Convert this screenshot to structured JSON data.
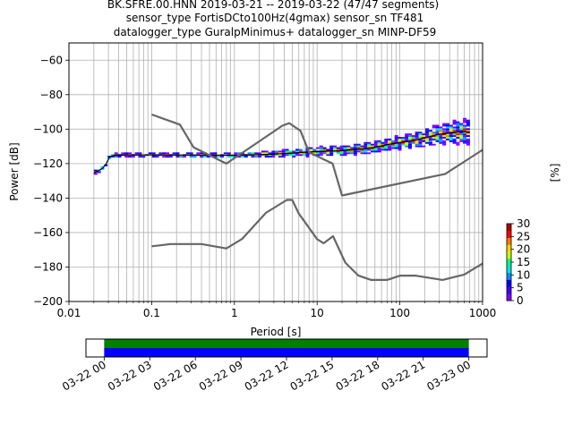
{
  "title": {
    "line1": "BK.SFRE.00.HNN   2019-03-21 -- 2019-03-22  (47/47 segments)",
    "line2": "sensor_type FortisDCto100Hz(4gmax) sensor_sn TF481",
    "line3": "datalogger_type GuralpMinimus+ datalogger_sn MINP-DF59"
  },
  "chart_data": [
    {
      "type": "heatmap",
      "xlabel": "Period [s]",
      "ylabel": "Power [dB]",
      "xscale": "log",
      "xlim": [
        0.01,
        1000
      ],
      "ylim": [
        -200,
        -50
      ],
      "xticks": [
        {
          "v": 0.01,
          "label": "0.01"
        },
        {
          "v": 0.1,
          "label": "0.1"
        },
        {
          "v": 1,
          "label": "1"
        },
        {
          "v": 10,
          "label": "10"
        },
        {
          "v": 100,
          "label": "100"
        },
        {
          "v": 1000,
          "label": "1000"
        }
      ],
      "yticks": [
        {
          "v": -60,
          "label": "−60"
        },
        {
          "v": -80,
          "label": "−80"
        },
        {
          "v": -100,
          "label": "−100"
        },
        {
          "v": -120,
          "label": "−120"
        },
        {
          "v": -140,
          "label": "−140"
        },
        {
          "v": -160,
          "label": "−160"
        },
        {
          "v": -180,
          "label": "−180"
        },
        {
          "v": -200,
          "label": "−200"
        }
      ],
      "grid": true,
      "noise_models": {
        "new_high_noise_model": [
          [
            0.1,
            -91.5
          ],
          [
            0.22,
            -97.4
          ],
          [
            0.32,
            -110.5
          ],
          [
            0.8,
            -120
          ],
          [
            3.8,
            -98
          ],
          [
            4.6,
            -96.5
          ],
          [
            6.3,
            -101
          ],
          [
            8,
            -113.5
          ],
          [
            15.4,
            -120
          ],
          [
            20,
            -138.5
          ],
          [
            354,
            -126
          ],
          [
            1000,
            -112
          ]
        ],
        "new_low_noise_model": [
          [
            0.1,
            -168
          ],
          [
            0.17,
            -166.7
          ],
          [
            0.4,
            -166.7
          ],
          [
            0.8,
            -169.2
          ],
          [
            1.24,
            -163.7
          ],
          [
            2.4,
            -148.6
          ],
          [
            4.3,
            -141.1
          ],
          [
            5,
            -141.1
          ],
          [
            6,
            -149
          ],
          [
            10,
            -163.8
          ],
          [
            12,
            -166.2
          ],
          [
            15.6,
            -162.1
          ],
          [
            21.9,
            -177.5
          ],
          [
            31.6,
            -185
          ],
          [
            45,
            -187.5
          ],
          [
            70,
            -187.5
          ],
          [
            101,
            -185
          ],
          [
            154,
            -185
          ],
          [
            328,
            -187.5
          ],
          [
            600,
            -184.4
          ],
          [
            1000,
            -178
          ]
        ]
      },
      "psd_median": [
        [
          0.02,
          -125.5
        ],
        [
          0.025,
          -123
        ],
        [
          0.028,
          -120.5
        ],
        [
          0.031,
          -116
        ],
        [
          0.035,
          -115.2
        ],
        [
          0.05,
          -115
        ],
        [
          0.1,
          -115
        ],
        [
          1,
          -115.2
        ],
        [
          3,
          -114.5
        ],
        [
          10,
          -113
        ],
        [
          20,
          -112.5
        ],
        [
          30,
          -111.8
        ],
        [
          50,
          -110.5
        ],
        [
          80,
          -108.5
        ],
        [
          150,
          -106.5
        ],
        [
          300,
          -103
        ],
        [
          500,
          -101.8
        ],
        [
          700,
          -101.5
        ]
      ],
      "psd_spread_db": [
        [
          0.02,
          1
        ],
        [
          0.1,
          1
        ],
        [
          1,
          1.2
        ],
        [
          3,
          1.6
        ],
        [
          10,
          2.2
        ],
        [
          30,
          2.6
        ],
        [
          100,
          3.2
        ],
        [
          300,
          4.5
        ],
        [
          700,
          6
        ]
      ],
      "colorbar": {
        "label": "[%]",
        "range": [
          0,
          30
        ],
        "ticks": [
          {
            "v": 0,
            "label": "0"
          },
          {
            "v": 5,
            "label": "5"
          },
          {
            "v": 10,
            "label": "10"
          },
          {
            "v": 15,
            "label": "15"
          },
          {
            "v": 20,
            "label": "20"
          },
          {
            "v": 25,
            "label": "25"
          },
          {
            "v": 30,
            "label": "30"
          }
        ],
        "colormap": [
          "#ffffff",
          "#8000ff",
          "#3d00ff",
          "#0000ff",
          "#0090ff",
          "#00e5e5",
          "#00ff80",
          "#c5ff00",
          "#ffd500",
          "#ff7a00",
          "#ff0000",
          "#b00000"
        ]
      }
    },
    {
      "type": "bar",
      "title": "",
      "xlabel": "",
      "ylabel": "",
      "xticks": [
        "03-22 00",
        "03-22 03",
        "03-22 06",
        "03-22 09",
        "03-22 12",
        "03-22 15",
        "03-22 18",
        "03-22 21",
        "03-23 00"
      ],
      "xlim_hours": [
        -1.2,
        25.2
      ],
      "series": [
        {
          "start_hour": 0,
          "end_hour": 24,
          "color": "#008000"
        },
        {
          "start_hour": 0,
          "end_hour": 24,
          "color": "#0000ff"
        }
      ]
    }
  ]
}
